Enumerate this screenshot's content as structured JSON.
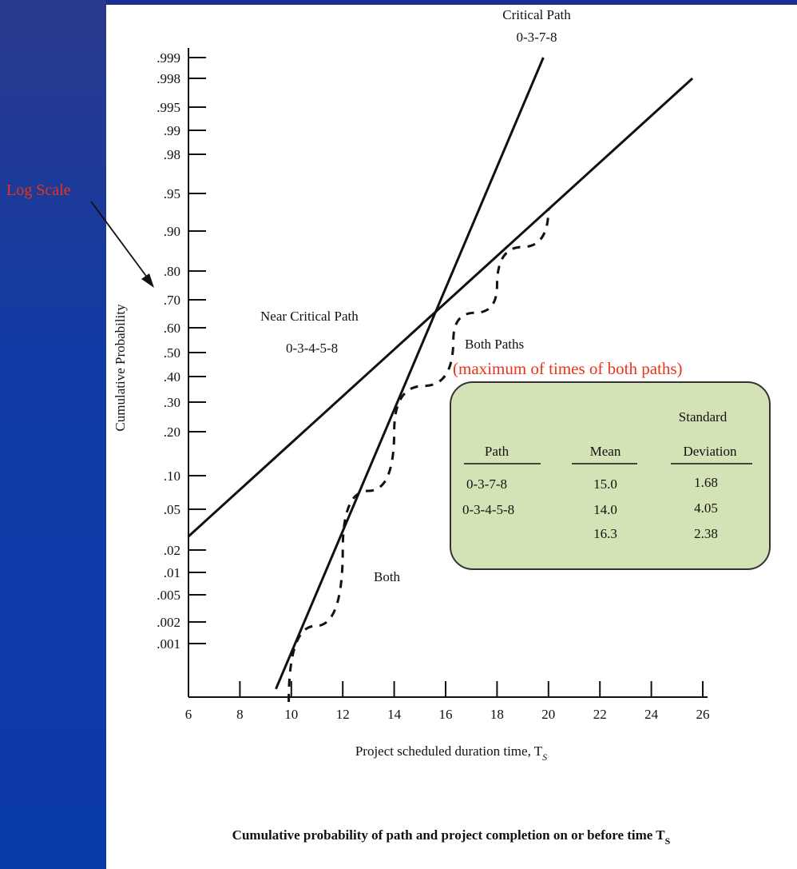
{
  "colors": {
    "background": "#003399",
    "panel": "#ffffff",
    "line": "#111111",
    "annotation": "#e8341c",
    "legend_fill": "#d4e3b5",
    "legend_border": "#333333"
  },
  "annotations": {
    "log_scale": "Log Scale",
    "both_paths_sub": "(maximum of times of both paths)"
  },
  "chart_data": {
    "type": "line",
    "title": "Cumulative probability of path and project completion on or before time T",
    "title_subscript": "S",
    "xlabel": "Project scheduled duration time, T",
    "xlabel_subscript": "S",
    "ylabel": "Cumulative Probability",
    "y_scale": "probability (nonlinear)",
    "xlim": [
      6,
      26
    ],
    "x_ticks": [
      "6",
      "8",
      "10",
      "12",
      "14",
      "16",
      "18",
      "20",
      "22",
      "24",
      "26"
    ],
    "y_ticks": [
      ".001",
      ".002",
      ".005",
      ".01",
      ".02",
      ".05",
      ".10",
      ".20",
      ".30",
      ".40",
      ".50",
      ".60",
      ".70",
      ".80",
      ".90",
      ".95",
      ".98",
      ".99",
      ".995",
      ".998",
      ".999"
    ],
    "series": [
      {
        "name": "Critical Path",
        "label_line2": "0-3-7-8",
        "style": "solid",
        "x": [
          9.4,
          19.8
        ],
        "y": [
          0.0003,
          0.999
        ]
      },
      {
        "name": "Near Critical Path",
        "label_line2": "0-3-4-5-8",
        "style": "solid",
        "x": [
          6.0,
          25.6
        ],
        "y": [
          0.03,
          0.998
        ]
      },
      {
        "name": "Both Paths",
        "style": "dashed",
        "x": [
          9.9,
          12.0,
          14.0,
          16.3,
          18.0,
          20.0
        ],
        "y": [
          0.0001,
          0.02,
          0.2,
          0.55,
          0.75,
          0.93
        ]
      }
    ],
    "region_label": "Both",
    "table": {
      "columns": [
        "Path",
        "Mean",
        "Standard",
        "Deviation"
      ],
      "rows": [
        {
          "path": "0-3-7-8",
          "mean": "15.0",
          "sd": "1.68"
        },
        {
          "path": "0-3-4-5-8",
          "mean": "14.0",
          "sd": "4.05"
        },
        {
          "path": "",
          "mean": "16.3",
          "sd": "2.38"
        }
      ]
    }
  }
}
